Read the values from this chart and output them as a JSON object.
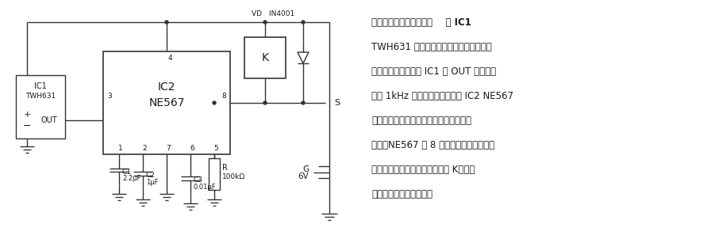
{
  "bg_color": "#ffffff",
  "description_lines": [
    "单稳态遥控开关接收电路    当 IC1",
    "TWH631 接收到由发射器发来的同频信号",
    "时，便进行解调，从 IC1 的 OUT 端输出还",
    "原的 1kHz 音频信号，再进入由 IC2 NE567",
    "所构成的单音译码电路。当两者的频率相",
    "同时，NE567 的 8 脚由原来的高电平变为",
    "低电平，此时有电流通过继电器 K，利用",
    "其触点去控制负载工作。"
  ],
  "line_color": "#333333",
  "text_color": "#1a1a1a",
  "lw": 1.0
}
